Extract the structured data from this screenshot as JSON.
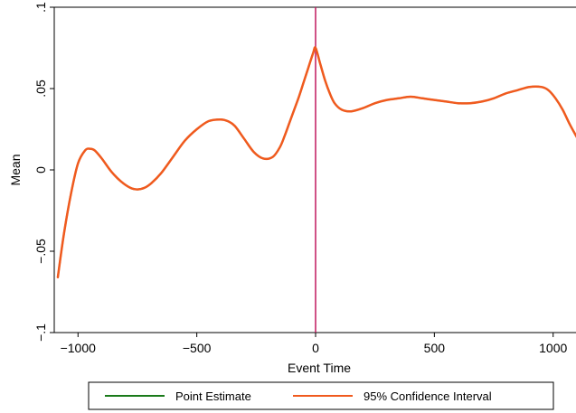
{
  "chart_data": {
    "type": "line",
    "title": "",
    "xlabel": "Event Time",
    "ylabel": "Mean",
    "xlim": [
      -1100,
      1100
    ],
    "ylim": [
      -0.1,
      0.1
    ],
    "xticks": [
      -1000,
      -500,
      0,
      500,
      1000
    ],
    "xtick_labels": [
      "−1000",
      "−500",
      "0",
      "500",
      "1000"
    ],
    "yticks": [
      -0.1,
      -0.05,
      0,
      0.05,
      0.1
    ],
    "ytick_labels": [
      "−.1",
      "−.05",
      "0",
      ".05",
      ".1"
    ],
    "grid": false,
    "vline": {
      "x": 0,
      "color": "#c0185f"
    },
    "legend": {
      "placement": "bottom",
      "entries": [
        "Point Estimate",
        "95% Confidence Interval"
      ]
    },
    "series": [
      {
        "name": "Point Estimate",
        "color": "#1a7a1a",
        "x": [
          -1085,
          -1060,
          -1030,
          -1000,
          -970,
          -950,
          -930,
          -900,
          -860,
          -820,
          -780,
          -750,
          -720,
          -690,
          -650,
          -600,
          -550,
          -500,
          -450,
          -400,
          -370,
          -340,
          -300,
          -260,
          -220,
          -180,
          -150,
          -130,
          -110,
          -90,
          -70,
          -50,
          -30,
          -10,
          0,
          20,
          40,
          60,
          80,
          110,
          150,
          200,
          250,
          300,
          350,
          400,
          450,
          500,
          550,
          600,
          650,
          700,
          750,
          800,
          850,
          900,
          950,
          980,
          1010,
          1040,
          1070,
          1100
        ],
        "y": [
          -0.066,
          -0.04,
          -0.015,
          0.004,
          0.012,
          0.013,
          0.012,
          0.007,
          -0.001,
          -0.007,
          -0.011,
          -0.012,
          -0.011,
          -0.008,
          -0.002,
          0.008,
          0.018,
          0.025,
          0.03,
          0.031,
          0.03,
          0.027,
          0.019,
          0.011,
          0.007,
          0.008,
          0.014,
          0.021,
          0.029,
          0.037,
          0.045,
          0.054,
          0.063,
          0.072,
          0.075,
          0.065,
          0.055,
          0.047,
          0.041,
          0.037,
          0.036,
          0.038,
          0.041,
          0.043,
          0.044,
          0.045,
          0.044,
          0.043,
          0.042,
          0.041,
          0.041,
          0.042,
          0.044,
          0.047,
          0.049,
          0.051,
          0.051,
          0.049,
          0.044,
          0.037,
          0.028,
          0.02
        ]
      },
      {
        "name": "95% Confidence Interval",
        "color": "#f05a1e",
        "x": [
          -1085,
          -1060,
          -1030,
          -1000,
          -970,
          -950,
          -930,
          -900,
          -860,
          -820,
          -780,
          -750,
          -720,
          -690,
          -650,
          -600,
          -550,
          -500,
          -450,
          -400,
          -370,
          -340,
          -300,
          -260,
          -220,
          -180,
          -150,
          -130,
          -110,
          -90,
          -70,
          -50,
          -30,
          -10,
          0,
          20,
          40,
          60,
          80,
          110,
          150,
          200,
          250,
          300,
          350,
          400,
          450,
          500,
          550,
          600,
          650,
          700,
          750,
          800,
          850,
          900,
          950,
          980,
          1010,
          1040,
          1070,
          1100
        ],
        "y": [
          -0.066,
          -0.04,
          -0.015,
          0.004,
          0.012,
          0.013,
          0.012,
          0.007,
          -0.001,
          -0.007,
          -0.011,
          -0.012,
          -0.011,
          -0.008,
          -0.002,
          0.008,
          0.018,
          0.025,
          0.03,
          0.031,
          0.03,
          0.027,
          0.019,
          0.011,
          0.007,
          0.008,
          0.014,
          0.021,
          0.029,
          0.037,
          0.045,
          0.054,
          0.063,
          0.072,
          0.075,
          0.065,
          0.055,
          0.047,
          0.041,
          0.037,
          0.036,
          0.038,
          0.041,
          0.043,
          0.044,
          0.045,
          0.044,
          0.043,
          0.042,
          0.041,
          0.041,
          0.042,
          0.044,
          0.047,
          0.049,
          0.051,
          0.051,
          0.049,
          0.044,
          0.037,
          0.028,
          0.02
        ]
      }
    ]
  }
}
